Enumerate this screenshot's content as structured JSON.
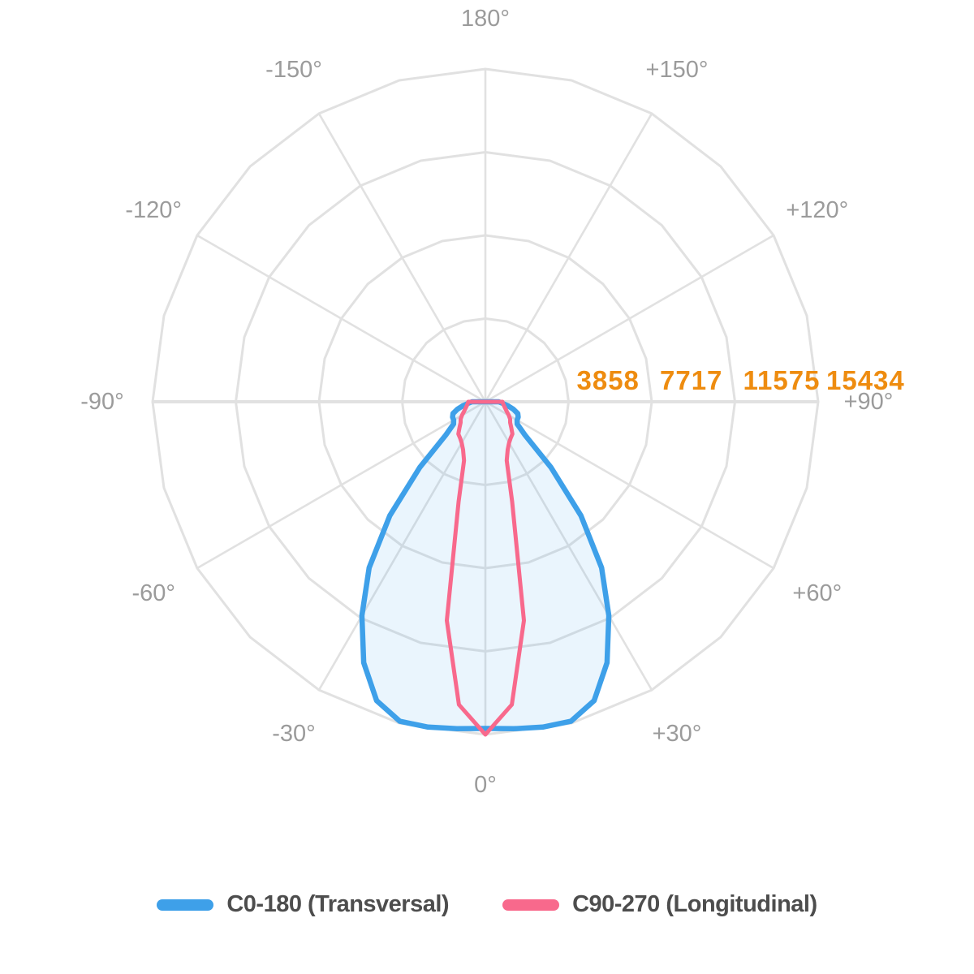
{
  "chart_data": {
    "type": "polar-photometric-line",
    "title": "",
    "orientation": "0deg-at-bottom, 180deg-at-top, positive-angles-right",
    "scale_max": 15434,
    "radial_ticks": [
      3858,
      7717,
      11575,
      15434
    ],
    "angle_labels": [
      {
        "text": "0°",
        "angle": 0
      },
      {
        "text": "+30°",
        "angle": 30
      },
      {
        "text": "+60°",
        "angle": 60
      },
      {
        "text": "+90°",
        "angle": 90
      },
      {
        "text": "+120°",
        "angle": 120
      },
      {
        "text": "+150°",
        "angle": 150
      },
      {
        "text": "180°",
        "angle": 180
      },
      {
        "text": "-150°",
        "angle": -150
      },
      {
        "text": "-120°",
        "angle": -120
      },
      {
        "text": "-90°",
        "angle": -90
      },
      {
        "text": "-60°",
        "angle": -60
      },
      {
        "text": "-30°",
        "angle": -30
      }
    ],
    "angles_deg": [
      -90,
      -85,
      -80,
      -75,
      -70,
      -65,
      -60,
      -55,
      -50,
      -45,
      -40,
      -35,
      -30,
      -25,
      -20,
      -15,
      -10,
      -5,
      0,
      5,
      10,
      15,
      20,
      25,
      30,
      35,
      40,
      45,
      50,
      55,
      60,
      65,
      70,
      75,
      80,
      85,
      90
    ],
    "series": [
      {
        "name": "C0-180 (Transversal)",
        "color": "#3EA0E9",
        "fill": "rgba(62,160,233,0.11)",
        "values": [
          620,
          800,
          1050,
          1350,
          1600,
          1680,
          1700,
          1800,
          2400,
          4300,
          6900,
          9400,
          11450,
          13350,
          14750,
          15340,
          15320,
          15220,
          15150,
          15220,
          15320,
          15340,
          14750,
          13350,
          11450,
          9400,
          6900,
          4300,
          2400,
          1800,
          1700,
          1680,
          1600,
          1350,
          1050,
          800,
          620
        ]
      },
      {
        "name": "C90-270 (Longitudinal)",
        "color": "#F8698C",
        "fill": "none",
        "values": [
          790,
          820,
          860,
          920,
          1000,
          1100,
          1250,
          1400,
          1500,
          1700,
          1950,
          2050,
          2200,
          2450,
          2900,
          4800,
          10300,
          14100,
          15434,
          14100,
          10300,
          4800,
          2900,
          2450,
          2200,
          2050,
          1950,
          1700,
          1500,
          1400,
          1250,
          1100,
          1000,
          920,
          860,
          820,
          790
        ]
      }
    ],
    "grid": {
      "rings": 4,
      "spoke_step_deg": 30,
      "grid_on": true
    },
    "legend_position": "bottom"
  },
  "legend": {
    "items": [
      {
        "label": "C0-180 (Transversal)",
        "color": "#3EA0E9"
      },
      {
        "label": "C90-270 (Longitudinal)",
        "color": "#F8698C"
      }
    ]
  },
  "colors": {
    "background": "#FFFFFF",
    "grid": "#E1E1E1",
    "angle_label": "#9B9B9B",
    "tick_label": "#EE8C10",
    "legend_text": "#4D4D4D"
  }
}
